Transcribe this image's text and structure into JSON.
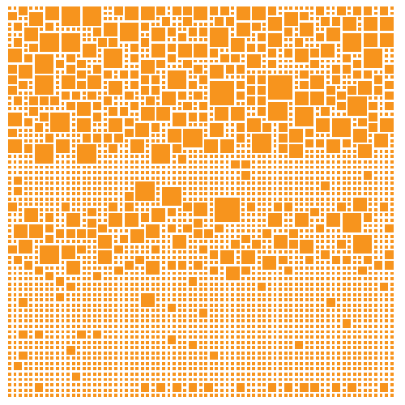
{
  "colors": {
    "background": "#ffffff",
    "tile": "#f7941d"
  }
}
